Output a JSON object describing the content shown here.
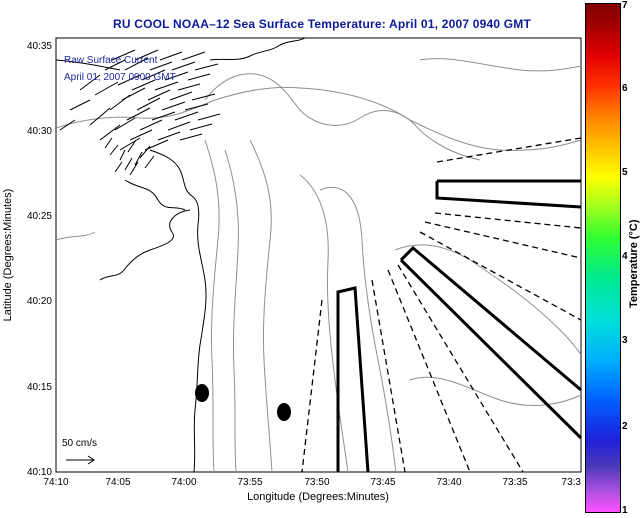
{
  "title": "RU COOL  NOAA–12  Sea Surface Temperature:  April 01, 2007 0940 GMT",
  "legend": {
    "line1": "Raw Surface Current",
    "line2": "April 01, 2007 0900 GMT",
    "scale_label": "50 cm/s"
  },
  "axes": {
    "xlabel": "Longitude (Degrees:Minutes)",
    "ylabel": "Latitude (Degrees:Minutes)",
    "xticks": [
      "74:10",
      "74:05",
      "74:00",
      "73:55",
      "73:50",
      "73:45",
      "73:40",
      "73:35",
      "73:3"
    ],
    "yticks": [
      "40:35",
      "40:30",
      "40:25",
      "40:20",
      "40:15",
      "40:10"
    ]
  },
  "colorbar": {
    "label": "Temperature (°C)",
    "ticks": [
      "7",
      "6",
      "5",
      "4",
      "3",
      "2",
      "1"
    ],
    "range": [
      1,
      7
    ]
  }
}
